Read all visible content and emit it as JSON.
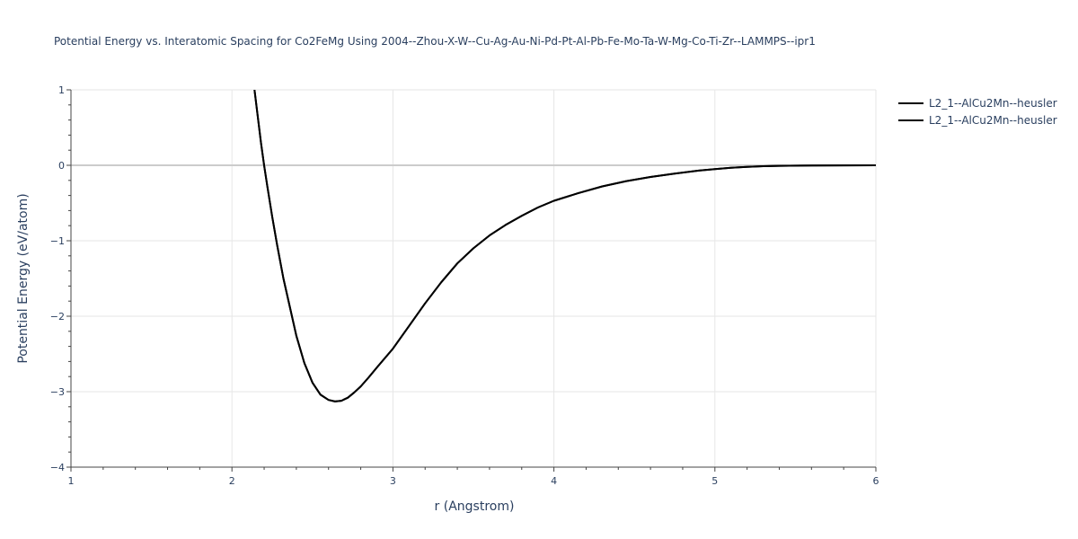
{
  "chart_data": {
    "type": "line",
    "title": "Potential Energy vs. Interatomic Spacing for Co2FeMg Using 2004--Zhou-X-W--Cu-Ag-Au-Ni-Pd-Pt-Al-Pb-Fe-Mo-Ta-W-Mg-Co-Ti-Zr--LAMMPS--ipr1",
    "xlabel": "r (Angstrom)",
    "ylabel": "Potential Energy (eV/atom)",
    "xlim": [
      1,
      6
    ],
    "ylim": [
      -4,
      1
    ],
    "xticks": [
      1,
      2,
      3,
      4,
      5,
      6
    ],
    "yticks": [
      1,
      0,
      -1,
      -2,
      -3,
      -4
    ],
    "xtick_labels": [
      "1",
      "2",
      "3",
      "4",
      "5",
      "6"
    ],
    "ytick_labels": [
      "1",
      "0",
      "−1",
      "−2",
      "−3",
      "−4"
    ],
    "grid": true,
    "legend_position": "top-right",
    "colors": {
      "line": "#000000",
      "grid": "#e6e6e6",
      "zeroline": "#cccccc",
      "text": "#2a3f5f"
    },
    "series": [
      {
        "name": "L2_1--AlCu2Mn--heusler",
        "x": [
          2.14,
          2.18,
          2.2,
          2.22,
          2.25,
          2.28,
          2.32,
          2.36,
          2.4,
          2.45,
          2.5,
          2.55,
          2.6,
          2.64,
          2.68,
          2.72,
          2.76,
          2.8,
          2.85,
          2.9,
          3.0,
          3.1,
          3.2,
          3.3,
          3.4,
          3.5,
          3.6,
          3.7,
          3.8,
          3.9,
          4.0,
          4.15,
          4.3,
          4.45,
          4.6,
          4.75,
          4.9,
          5.0,
          5.1,
          5.2,
          5.3,
          5.4,
          5.6,
          5.8,
          6.0
        ],
        "y": [
          1.0,
          0.3,
          0.0,
          -0.28,
          -0.68,
          -1.05,
          -1.5,
          -1.88,
          -2.26,
          -2.62,
          -2.88,
          -3.04,
          -3.11,
          -3.13,
          -3.12,
          -3.08,
          -3.01,
          -2.93,
          -2.81,
          -2.68,
          -2.43,
          -2.13,
          -1.83,
          -1.55,
          -1.3,
          -1.1,
          -0.93,
          -0.79,
          -0.67,
          -0.56,
          -0.47,
          -0.37,
          -0.28,
          -0.21,
          -0.155,
          -0.11,
          -0.07,
          -0.05,
          -0.032,
          -0.02,
          -0.012,
          -0.007,
          -0.003,
          -0.001,
          0.0
        ]
      },
      {
        "name": "L2_1--AlCu2Mn--heusler",
        "x": [
          2.14,
          2.18,
          2.2,
          2.22,
          2.25,
          2.28,
          2.32,
          2.36,
          2.4,
          2.45,
          2.5,
          2.55,
          2.6,
          2.64,
          2.68,
          2.72,
          2.76,
          2.8,
          2.85,
          2.9,
          3.0,
          3.1,
          3.2,
          3.3,
          3.4,
          3.5,
          3.6,
          3.7,
          3.8,
          3.9,
          4.0,
          4.15,
          4.3,
          4.45,
          4.6,
          4.75,
          4.9,
          5.0,
          5.1,
          5.2,
          5.3,
          5.4,
          5.6,
          5.8,
          6.0
        ],
        "y": [
          1.0,
          0.3,
          0.0,
          -0.28,
          -0.68,
          -1.05,
          -1.5,
          -1.88,
          -2.26,
          -2.62,
          -2.88,
          -3.04,
          -3.11,
          -3.13,
          -3.12,
          -3.08,
          -3.01,
          -2.93,
          -2.81,
          -2.68,
          -2.43,
          -2.13,
          -1.83,
          -1.55,
          -1.3,
          -1.1,
          -0.93,
          -0.79,
          -0.67,
          -0.56,
          -0.47,
          -0.37,
          -0.28,
          -0.21,
          -0.155,
          -0.11,
          -0.07,
          -0.05,
          -0.032,
          -0.02,
          -0.012,
          -0.007,
          -0.003,
          -0.001,
          0.0
        ]
      }
    ]
  }
}
